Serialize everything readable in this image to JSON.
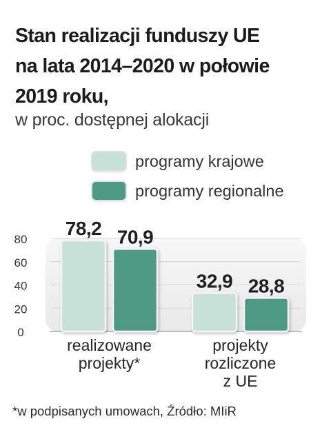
{
  "title_lines": [
    "Stan realizacji funduszy UE",
    "na lata  2014–2020 w połowie",
    "2019 roku,"
  ],
  "subtitle": "w proc. dostępnej alokacji",
  "footnote": "*w podpisanych umowach,  Źródło: MIiR",
  "colors": {
    "krajowe": "#c8e1d8",
    "regionalne": "#4f9a85"
  },
  "chart_data": {
    "type": "bar",
    "categories": [
      [
        "realizowane",
        "projekty*"
      ],
      [
        "projekty",
        "rozliczone",
        "z UE"
      ]
    ],
    "series": [
      {
        "name": "programy krajowe",
        "values": [
          78.2,
          32.9
        ],
        "labels": [
          "78,2",
          "32,9"
        ]
      },
      {
        "name": "programy regionalne",
        "values": [
          70.9,
          28.8
        ],
        "labels": [
          "70,9",
          "28,8"
        ]
      }
    ],
    "yticks": [
      0,
      20,
      40,
      60,
      80
    ],
    "ylim": [
      0,
      80
    ],
    "grid": true,
    "legend": "top"
  }
}
